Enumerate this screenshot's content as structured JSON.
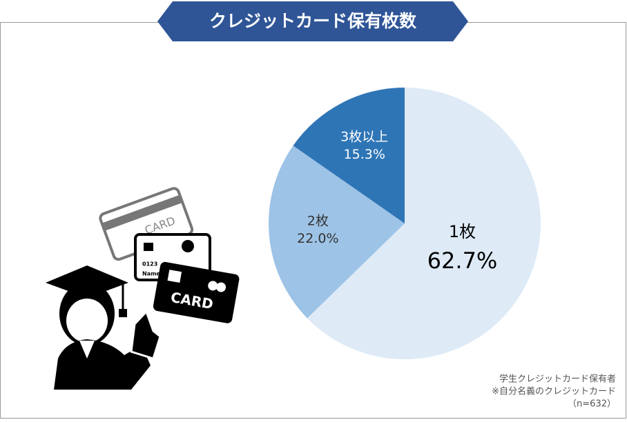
{
  "chart_data": {
    "type": "pie",
    "title": "クレジットカード保有枚数",
    "categories": [
      "1枚",
      "2枚",
      "3枚以上"
    ],
    "values": [
      62.7,
      22.0,
      15.3
    ],
    "value_labels": [
      "62.7%",
      "22.0%",
      "15.3%"
    ],
    "colors": [
      "#deebf7",
      "#9dc3e6",
      "#2e75b6"
    ],
    "notes": [
      "学生クレジットカード保有者",
      "※自分名義のクレジットカード",
      "（n=632）"
    ]
  },
  "illustration": {
    "card_texts": [
      "CARD",
      "0123",
      "Name",
      "CARD"
    ]
  }
}
